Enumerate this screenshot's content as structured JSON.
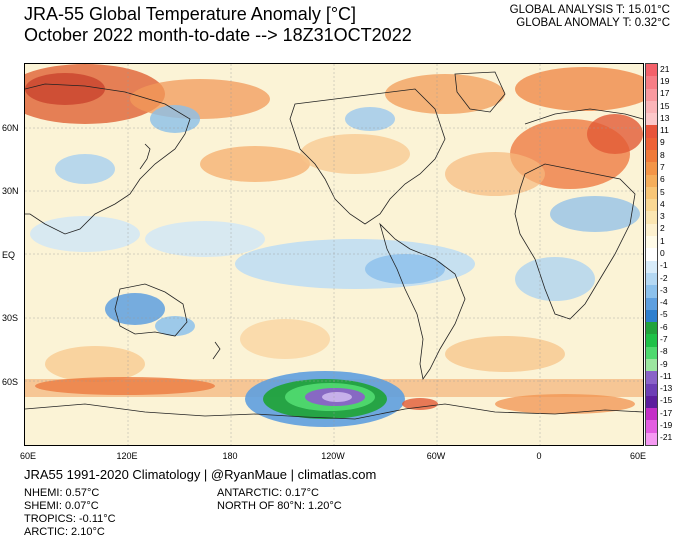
{
  "title": {
    "line1": "JRA-55 Global Temperature Anomaly [°C]",
    "line2": "October 2022 month-to-date --> 18Z31OCT2022"
  },
  "global_stats": {
    "analysis": "GLOBAL ANALYSIS T: 15.01°C",
    "anomaly": "GLOBAL ANOMALY T: 0.32°C"
  },
  "map": {
    "lat_labels": [
      "60N",
      "30N",
      "EQ",
      "30S",
      "60S"
    ],
    "lon_labels": [
      "60E",
      "120E",
      "180",
      "120W",
      "60W",
      "0",
      "60E"
    ],
    "colorbar": {
      "labels": [
        "21",
        "19",
        "17",
        "15",
        "13",
        "11",
        "9",
        "8",
        "7",
        "6",
        "5",
        "4",
        "3",
        "2",
        "1",
        "0",
        "-1",
        "-2",
        "-3",
        "-4",
        "-5",
        "-6",
        "-7",
        "-8",
        "-9",
        "-11",
        "-13",
        "-15",
        "-17",
        "-19",
        "-21"
      ],
      "colors": [
        "#f4616a",
        "#f77e86",
        "#f99aa0",
        "#fbb5b9",
        "#fcc8ca",
        "#e8543b",
        "#ee6236",
        "#f07a3a",
        "#f39548",
        "#f5ae5c",
        "#f8c677",
        "#fad894",
        "#fbe6b2",
        "#fdf1cf",
        "#fffbe8",
        "#ffffff",
        "#d8ecfa",
        "#b4d8f3",
        "#8cc1ec",
        "#5e9fdf",
        "#2e7fce",
        "#22a33c",
        "#1fc148",
        "#4fd96f",
        "#9ce6a0",
        "#8a63c8",
        "#6d3fb5",
        "#5c1e9d",
        "#c42fc7",
        "#e35ee1",
        "#f59af2"
      ]
    }
  },
  "footer": {
    "credit": "JRA55 1991-2020 Climatology | @RyanMaue | climatlas.com",
    "left_stats": [
      "NHEMI: 0.57°C",
      "SHEMI: 0.07°C",
      "TROPICS: -0.11°C",
      "ARCTIC: 2.10°C"
    ],
    "right_stats": [
      "ANTARCTIC: 0.17°C",
      "NORTH OF 80°N: 1.20°C"
    ]
  }
}
